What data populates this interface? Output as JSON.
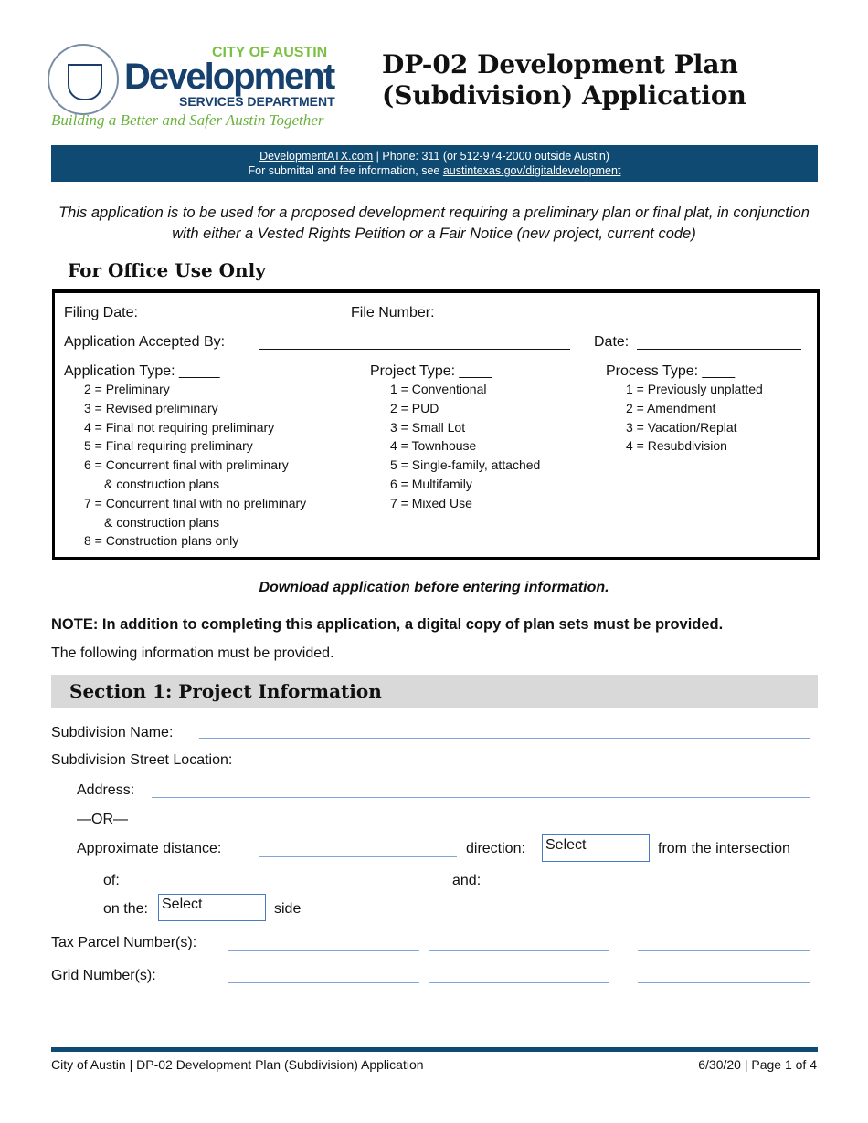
{
  "header": {
    "logo_city": "CITY OF AUSTIN",
    "logo_dev": "Development",
    "logo_services": "SERVICES DEPARTMENT",
    "tagline": "Building a Better and Safer Austin Together",
    "title_line1": "DP-02 Development Plan",
    "title_line2": "(Subdivision) Application"
  },
  "band": {
    "link": "DevelopmentATX.com",
    "phone": " | Phone: 311 (or 512-974-2000 outside Austin)",
    "line2_prefix": "For submittal and fee information, see ",
    "line2_link": "austintexas.gov/digitaldevelopment"
  },
  "intro": "This application is to be used for a proposed development requiring a preliminary plan or final plat, in conjunction with either a Vested Rights Petition or a Fair Notice (new project, current code)",
  "office": {
    "heading": "For Office Use Only",
    "filing_date": "Filing Date:",
    "file_number": "File Number:",
    "accepted_by": "Application Accepted By:",
    "date": "Date:",
    "app_type": "Application Type: _____",
    "app_items": [
      "2 = Preliminary",
      "3 = Revised preliminary",
      "4 = Final not requiring preliminary",
      "5 = Final requiring preliminary",
      "6 = Concurrent final with preliminary",
      "& construction plans",
      "7 = Concurrent final with no preliminary",
      "& construction plans",
      "8 = Construction plans only"
    ],
    "project_type": "Project Type: ____",
    "project_items": [
      "1 = Conventional",
      "2 = PUD",
      "3 = Small Lot",
      "4 = Townhouse",
      "5 = Single-family, attached",
      "6 = Multifamily",
      "7 = Mixed Use"
    ],
    "process_type": "Process Type: ____",
    "process_items": [
      "1 = Previously unplatted",
      "2 = Amendment",
      "3 = Vacation/Replat",
      "4 = Resubdivision"
    ]
  },
  "download": "Download application before entering information.",
  "note": "NOTE: In addition to completing this application, a digital copy of plan sets must be provided.",
  "following": "The following information must be provided.",
  "section1": {
    "heading": "Section 1: Project Information",
    "subdivision_name": "Subdivision Name:",
    "street_location": "Subdivision Street Location:",
    "address": "Address:",
    "or": "—OR—",
    "approx": "Approximate distance:",
    "direction": "direction:",
    "direction_value": "Select",
    "from": "from the intersection",
    "of": "of:",
    "and": "and:",
    "on_the": "on the:",
    "side_value": "Select",
    "side": "side",
    "tax": "Tax Parcel Number(s):",
    "grid": "Grid Number(s):"
  },
  "footer": {
    "left": "City of Austin | DP-02 Development Plan (Subdivision) Application",
    "right": "6/30/20 | Page 1 of 4"
  },
  "colors": {
    "brand_blue": "#0f4a73",
    "brand_green": "#7ac143",
    "field_line": "#7fa6d6"
  }
}
